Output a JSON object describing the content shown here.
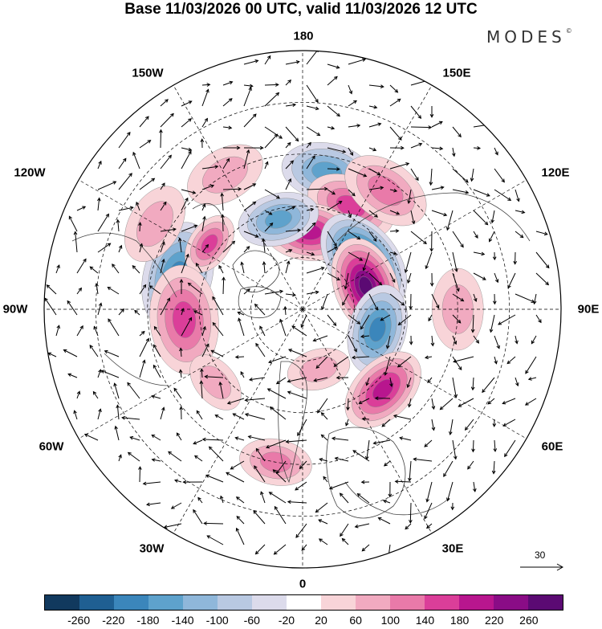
{
  "title": "Base 11/03/2026 00 UTC, valid 11/03/2026 12 UTC",
  "brand": "MODES",
  "brand_mark": "©",
  "longitude_labels": {
    "top": "180",
    "top_left": "150W",
    "top_right": "150E",
    "upper_left": "120W",
    "upper_right": "120E",
    "left": "90W",
    "right": "90E",
    "lower_left": "60W",
    "lower_right": "60E",
    "bottom_left": "30W",
    "bottom_right": "30E",
    "bottom": "0"
  },
  "reference_vector": {
    "label": "30"
  },
  "colorbar": {
    "colors": [
      "#11395e",
      "#1f5f92",
      "#3b86bb",
      "#5ea2cc",
      "#8fb7da",
      "#b9c9e2",
      "#dcdbeb",
      "#ffffff",
      "#f8d4d8",
      "#f1aac0",
      "#e97aa9",
      "#db3e99",
      "#b8168e",
      "#8a0c86",
      "#5b0a73"
    ],
    "ticks": [
      "-260",
      "-220",
      "-180",
      "-140",
      "-100",
      "-60",
      "-20",
      "20",
      "60",
      "100",
      "140",
      "180",
      "220",
      "260"
    ]
  },
  "colors": {
    "land_outline": "#444444",
    "grid": "#000000",
    "vector": "#000000"
  },
  "anomalies": [
    {
      "lon": 170,
      "colat": 27,
      "value": -140,
      "size": 1.0
    },
    {
      "lon": 155,
      "colat": 22,
      "value": 140,
      "size": 1.0
    },
    {
      "lon": 145,
      "colat": 28,
      "value": 120,
      "size": 1.0
    },
    {
      "lon": 175,
      "colat": 15,
      "value": 210,
      "size": 1.0
    },
    {
      "lon": -165,
      "colat": 18,
      "value": -140,
      "size": 0.9
    },
    {
      "lon": 128,
      "colat": 15,
      "value": -260,
      "size": 1.2
    },
    {
      "lon": 110,
      "colat": 13,
      "value": 260,
      "size": 1.1
    },
    {
      "lon": 75,
      "colat": 15,
      "value": -180,
      "size": 1.0
    },
    {
      "lon": 45,
      "colat": 22,
      "value": 180,
      "size": 1.0
    },
    {
      "lon": -105,
      "colat": 25,
      "value": -180,
      "size": 1.2
    },
    {
      "lon": -125,
      "colat": 22,
      "value": 140,
      "size": 0.7
    },
    {
      "lon": -150,
      "colat": 30,
      "value": 80,
      "size": 0.9
    },
    {
      "lon": -85,
      "colat": 23,
      "value": 140,
      "size": 1.2
    },
    {
      "lon": -50,
      "colat": 22,
      "value": 80,
      "size": 0.7
    },
    {
      "lon": -10,
      "colat": 30,
      "value": 100,
      "size": 0.8
    },
    {
      "lon": 15,
      "colat": 12,
      "value": 60,
      "size": 0.7
    },
    {
      "lon": 90,
      "colat": 30,
      "value": 90,
      "size": 0.9
    },
    {
      "lon": -120,
      "colat": 33,
      "value": 60,
      "size": 0.9
    }
  ]
}
